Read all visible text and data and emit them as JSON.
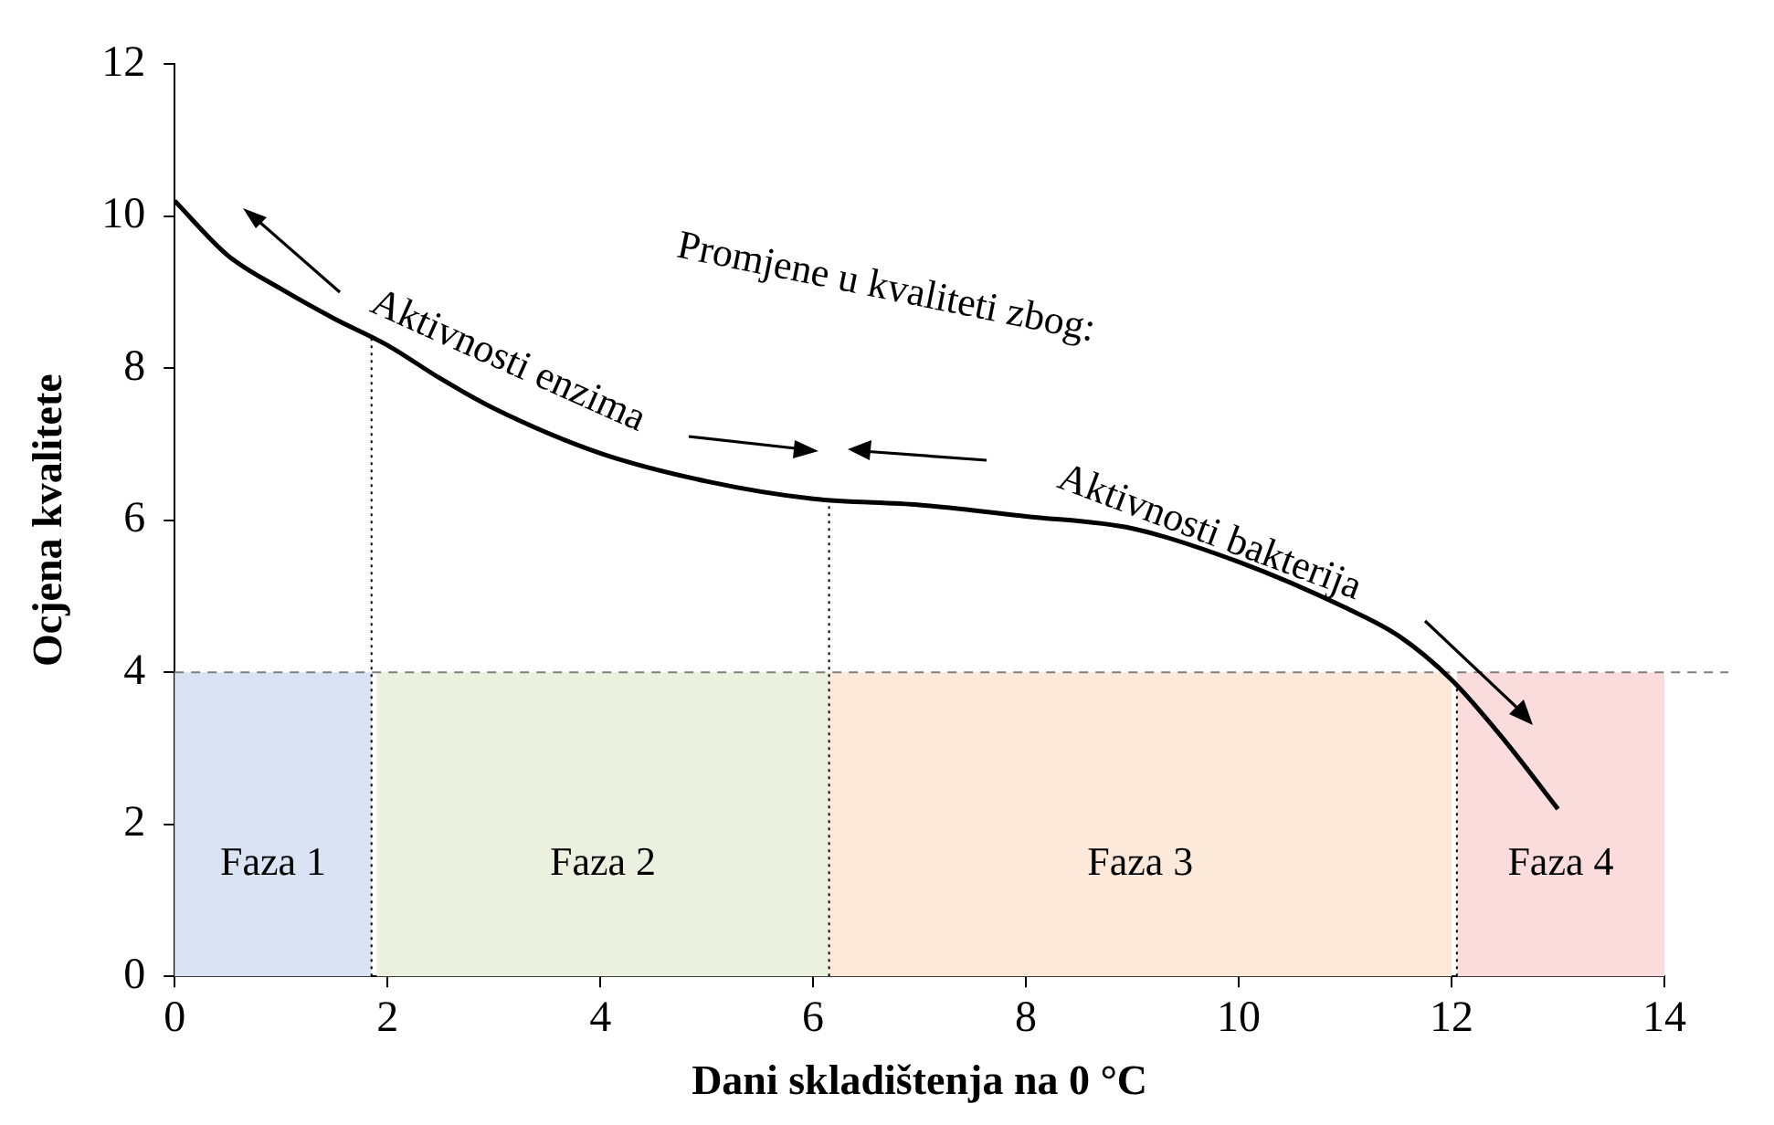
{
  "chart_data": {
    "type": "line",
    "xlabel": "Dani skladištenja na 0 °C",
    "ylabel": "Ocjena kvalitete",
    "x": [
      0,
      0.5,
      1,
      1.5,
      2,
      2.5,
      3,
      4,
      5,
      6,
      7,
      8,
      9,
      10,
      11,
      11.5,
      12,
      12.5,
      13
    ],
    "series": [
      {
        "color": "#000000",
        "values": [
          10.2,
          9.48,
          9.04,
          8.65,
          8.3,
          7.86,
          7.47,
          6.88,
          6.51,
          6.28,
          6.2,
          6.05,
          5.89,
          5.45,
          4.85,
          4.48,
          3.9,
          3.1,
          2.2
        ]
      }
    ],
    "xlim": [
      0,
      14
    ],
    "xticks": [
      0,
      2,
      4,
      6,
      8,
      10,
      12,
      14
    ],
    "ylim": [
      0,
      12
    ],
    "yticks": [
      0,
      2,
      4,
      6,
      8,
      10,
      12
    ],
    "grid": false,
    "legend": false,
    "marker": "none",
    "line_style": "solid",
    "bands": [
      {
        "axis": "x",
        "from": 0,
        "to": 1.85,
        "label": "Faza 1",
        "color": "#dae3f3"
      },
      {
        "axis": "x",
        "from": 1.9,
        "to": 6.15,
        "label": "Faza 2",
        "color": "#ebf1de"
      },
      {
        "axis": "x",
        "from": 6.15,
        "to": 12,
        "label": "Faza 3",
        "color": "#fde9d9"
      },
      {
        "axis": "x",
        "from": 12.05,
        "to": 14,
        "label": "Faza 4",
        "color": "#fbdcdc"
      }
    ],
    "ref_lines": [
      {
        "axis": "y",
        "value": 4,
        "line_style": "dashed",
        "color": "#7f7f7f"
      },
      {
        "axis": "x",
        "value": 1.85,
        "line_style": "dotted",
        "color": "#000000"
      },
      {
        "axis": "x",
        "value": 6.15,
        "line_style": "dotted",
        "color": "#000000"
      },
      {
        "axis": "x",
        "value": 12.05,
        "line_style": "dotted",
        "color": "#000000"
      }
    ],
    "annotations": [
      "Promjene u kvaliteti zbog:",
      "Aktivnosti enzima",
      "Aktivnosti bakterija"
    ]
  }
}
